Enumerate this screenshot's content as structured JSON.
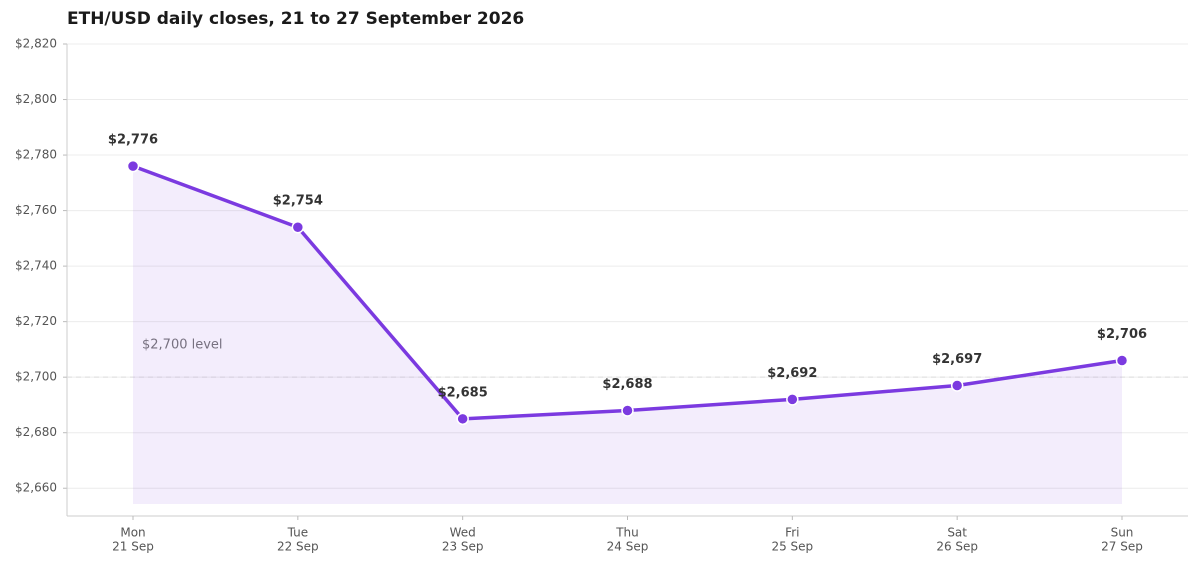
{
  "chart_data": {
    "type": "line",
    "title": "ETH/USD daily closes, 21 to 27 September 2026",
    "categories": [
      [
        "Mon",
        "21 Sep"
      ],
      [
        "Tue",
        "22 Sep"
      ],
      [
        "Wed",
        "23 Sep"
      ],
      [
        "Thu",
        "24 Sep"
      ],
      [
        "Fri",
        "25 Sep"
      ],
      [
        "Sat",
        "26 Sep"
      ],
      [
        "Sun",
        "27 Sep"
      ]
    ],
    "series": [
      {
        "name": "ETH/USD close",
        "color": "#7b3ae0",
        "values": [
          2776,
          2754,
          2685,
          2688,
          2692,
          2697,
          2706
        ],
        "value_labels": [
          "$2,776",
          "$2,754",
          "$2,685",
          "$2,688",
          "$2,692",
          "$2,697",
          "$2,706"
        ]
      }
    ],
    "ylim": [
      2650,
      2820
    ],
    "yticks": [
      {
        "value": 2660,
        "label": "$2,660"
      },
      {
        "value": 2680,
        "label": "$2,680"
      },
      {
        "value": 2700,
        "label": "$2,700"
      },
      {
        "value": 2720,
        "label": "$2,720"
      },
      {
        "value": 2740,
        "label": "$2,740"
      },
      {
        "value": 2760,
        "label": "$2,760"
      },
      {
        "value": 2780,
        "label": "$2,780"
      },
      {
        "value": 2800,
        "label": "$2,800"
      },
      {
        "value": 2820,
        "label": "$2,820"
      }
    ],
    "grid": true,
    "reference_line": {
      "value": 2700,
      "label": "$2,700 level"
    }
  }
}
